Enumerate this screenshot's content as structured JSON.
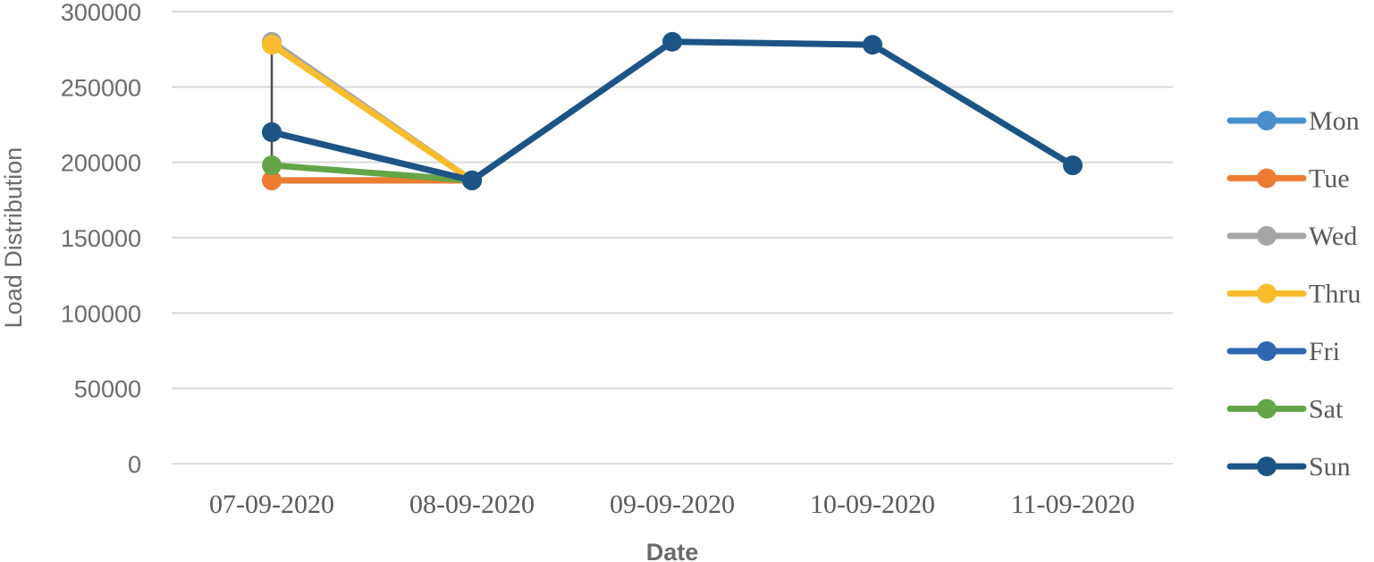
{
  "chart_data": {
    "type": "line",
    "title": "",
    "xlabel": "Date",
    "ylabel": "Load Distribution",
    "categories": [
      "07-09-2020",
      "08-09-2020",
      "09-09-2020",
      "10-09-2020",
      "11-09-2020"
    ],
    "ylim": [
      0,
      300000
    ],
    "yticks": [
      0,
      50000,
      100000,
      150000,
      200000,
      250000,
      300000
    ],
    "grid": true,
    "legend_position": "right",
    "series": [
      {
        "name": "Mon",
        "color": "#4a8fcc",
        "values": [
          188000,
          188000,
          null,
          null,
          null
        ]
      },
      {
        "name": "Tue",
        "color": "#ed7d31",
        "values": [
          188000,
          188000,
          null,
          null,
          null
        ]
      },
      {
        "name": "Wed",
        "color": "#a5a5a5",
        "values": [
          280000,
          188000,
          null,
          null,
          null
        ]
      },
      {
        "name": "Thru",
        "color": "#f8bd2d",
        "values": [
          278000,
          188000,
          null,
          null,
          null
        ]
      },
      {
        "name": "Fri",
        "color": "#2f66b0",
        "values": [
          220000,
          188000,
          null,
          null,
          null
        ]
      },
      {
        "name": "Sat",
        "color": "#64a547",
        "values": [
          198000,
          188000,
          null,
          null,
          null
        ]
      },
      {
        "name": "Sun",
        "color": "#1c5486",
        "values": [
          220000,
          188000,
          280000,
          278000,
          198000
        ]
      }
    ],
    "annotations": [
      {
        "type": "vertical-range-line",
        "category": "07-09-2020",
        "from": 188000,
        "to": 280000,
        "color": "#505050"
      }
    ]
  }
}
